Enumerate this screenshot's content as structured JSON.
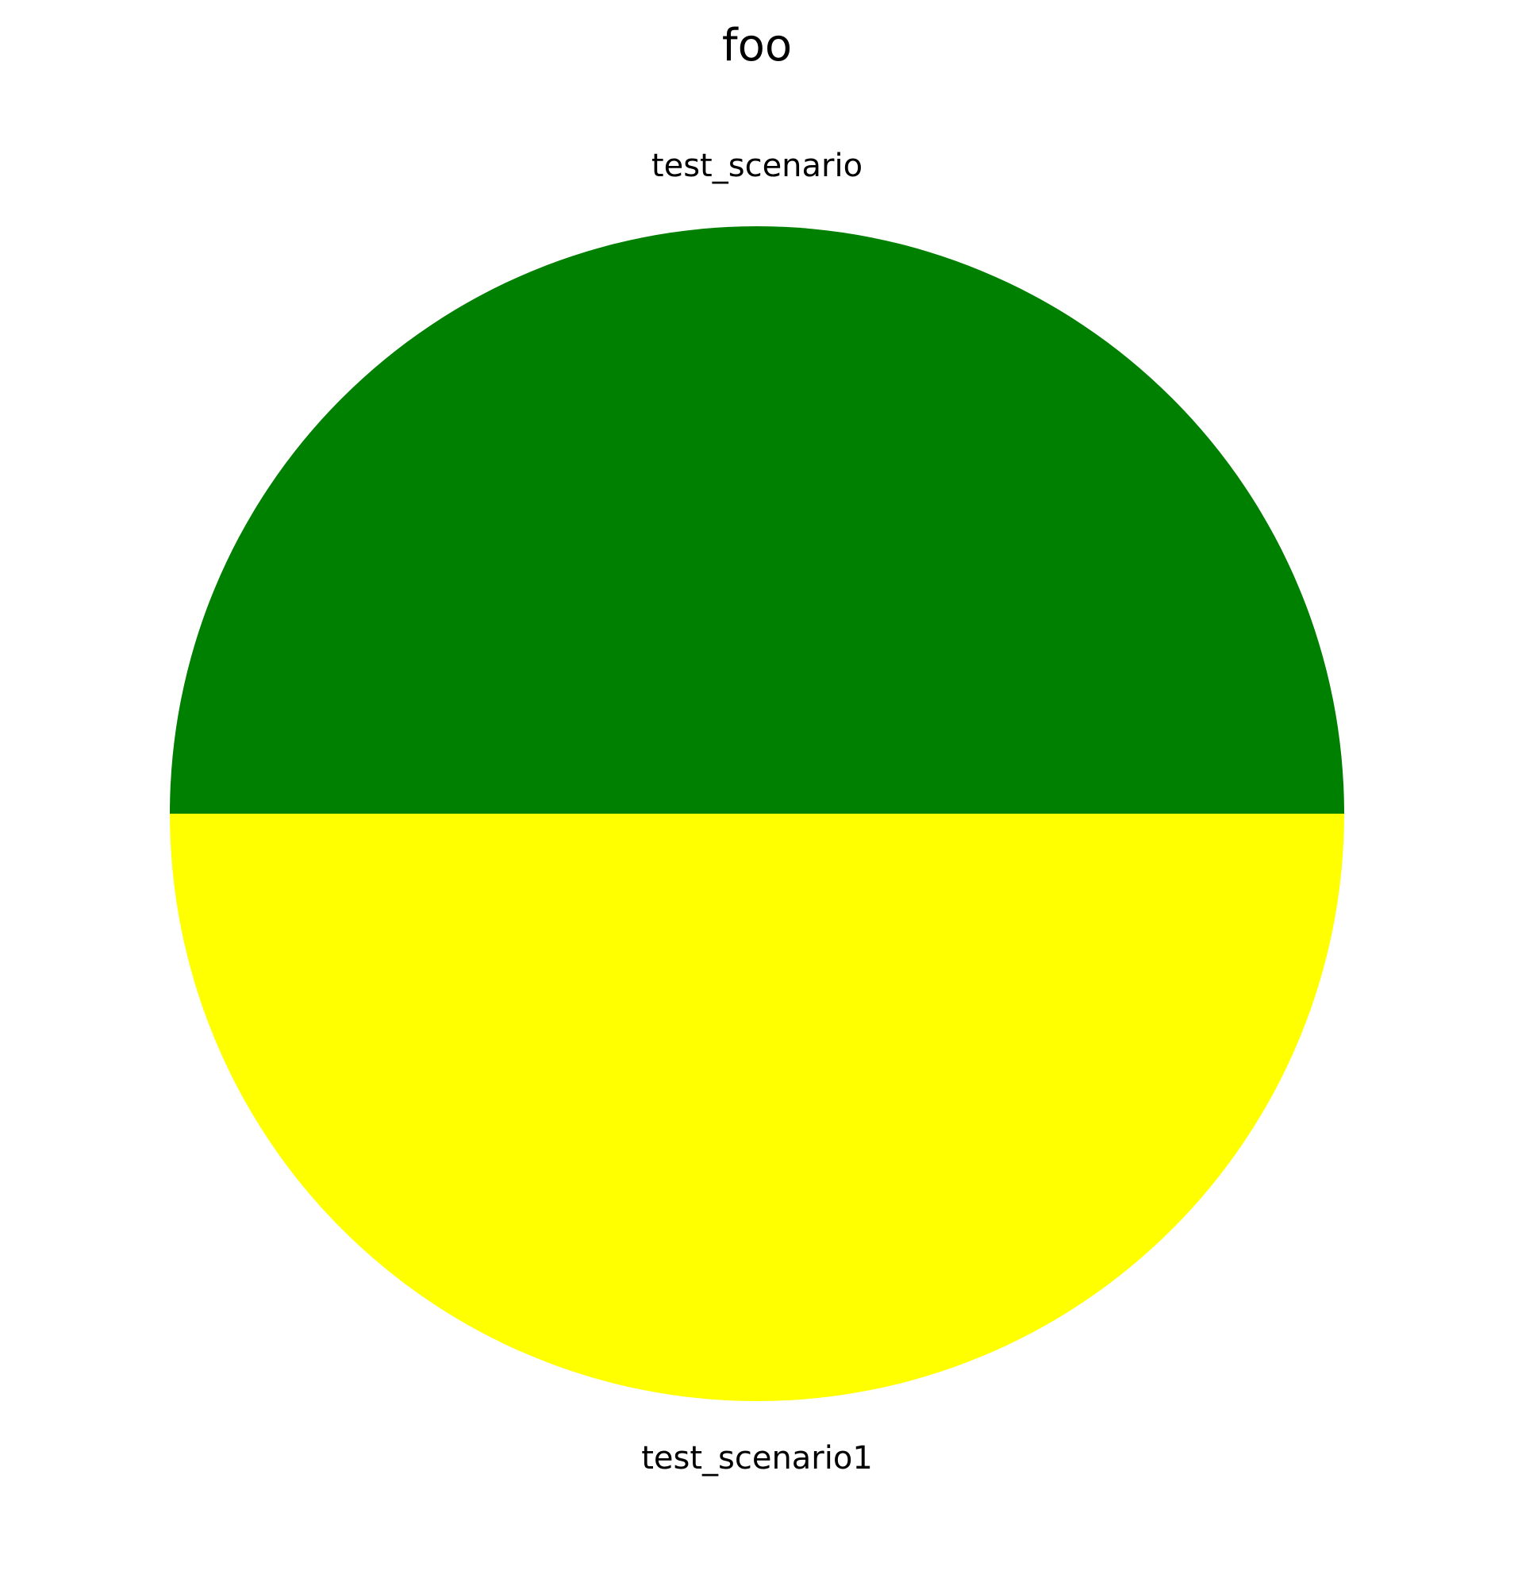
{
  "chart_data": {
    "type": "pie",
    "title": "foo",
    "labels": [
      "test_scenario",
      "test_scenario1"
    ],
    "values": [
      1,
      1
    ],
    "colors": [
      "#008000",
      "#ffff00"
    ],
    "start_angle_deg": 0,
    "counterclock": true
  }
}
